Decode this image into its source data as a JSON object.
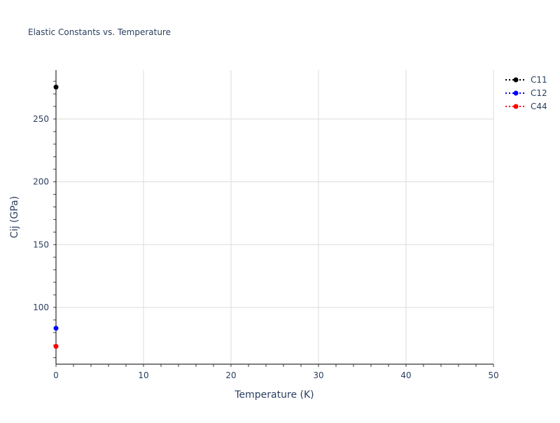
{
  "chart_data": {
    "type": "scatter",
    "title": "Elastic Constants vs. Temperature",
    "xlabel": "Temperature (K)",
    "ylabel": "Cij (GPa)",
    "xlim": [
      0,
      50
    ],
    "ylim": [
      54.8,
      289
    ],
    "x_ticks": [
      0,
      10,
      20,
      30,
      40,
      50
    ],
    "y_ticks": [
      100,
      150,
      200,
      250
    ],
    "grid": true,
    "legend_position": "top-right",
    "series": [
      {
        "name": "C11",
        "color": "#000000",
        "x": [
          0
        ],
        "y": [
          275.4
        ]
      },
      {
        "name": "C12",
        "color": "#0000ff",
        "x": [
          0
        ],
        "y": [
          83.4
        ]
      },
      {
        "name": "C44",
        "color": "#ff0000",
        "x": [
          0
        ],
        "y": [
          69
        ]
      }
    ]
  }
}
